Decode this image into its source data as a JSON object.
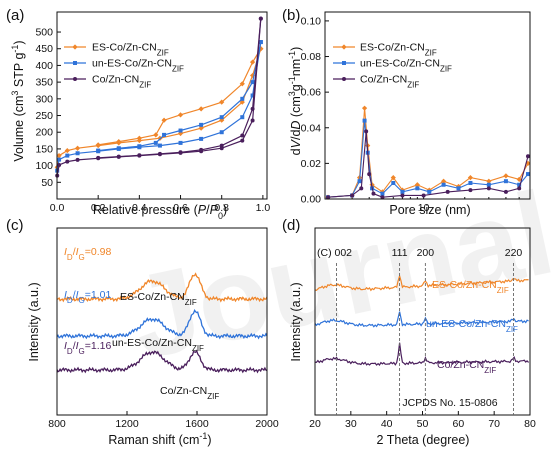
{
  "figure": {
    "watermark": "Journal Pre-proofs",
    "colors": {
      "es": "#f0862a",
      "un": "#2f73d9",
      "co": "#4a1f5c",
      "ref": "#666666"
    }
  },
  "chart_data": [
    {
      "panel": "(a)",
      "type": "line",
      "xlabel": "Relative pressure (P/P0)",
      "ylabel": "Volume (cm3 STP g-1)",
      "xlim": [
        0,
        1.02
      ],
      "ylim": [
        0,
        560
      ],
      "xticks": [
        "0.0",
        "0.2",
        "0.4",
        "0.6",
        "0.8",
        "1.0"
      ],
      "yticks": [
        "50",
        "100",
        "150",
        "200",
        "250",
        "300",
        "350",
        "400",
        "450",
        "500"
      ],
      "legend": "top-left",
      "series": [
        {
          "name": "ES-Co/Zn-CNZIF",
          "color": "#f0862a",
          "adsorption": [
            [
              0.001,
              95
            ],
            [
              0.01,
              130
            ],
            [
              0.05,
              145
            ],
            [
              0.1,
              152
            ],
            [
              0.2,
              160
            ],
            [
              0.3,
              168
            ],
            [
              0.4,
              175
            ],
            [
              0.5,
              182
            ],
            [
              0.6,
              196
            ],
            [
              0.7,
              212
            ],
            [
              0.8,
              236
            ],
            [
              0.9,
              290
            ],
            [
              0.95,
              370
            ],
            [
              0.99,
              450
            ]
          ],
          "desorption": [
            [
              0.99,
              450
            ],
            [
              0.95,
              410
            ],
            [
              0.9,
              345
            ],
            [
              0.8,
              290
            ],
            [
              0.7,
              270
            ],
            [
              0.6,
              252
            ],
            [
              0.52,
              236
            ],
            [
              0.48,
              192
            ],
            [
              0.4,
              182
            ],
            [
              0.3,
              172
            ],
            [
              0.2,
              162
            ]
          ]
        },
        {
          "name": "un-ES-Co/Zn-CNZIF",
          "color": "#2f73d9",
          "adsorption": [
            [
              0.001,
              85
            ],
            [
              0.01,
              118
            ],
            [
              0.05,
              130
            ],
            [
              0.1,
              137
            ],
            [
              0.2,
              143
            ],
            [
              0.3,
              150
            ],
            [
              0.4,
              155
            ],
            [
              0.5,
              160
            ],
            [
              0.6,
              168
            ],
            [
              0.7,
              180
            ],
            [
              0.8,
              200
            ],
            [
              0.9,
              245
            ],
            [
              0.95,
              310
            ],
            [
              0.99,
              470
            ]
          ],
          "desorption": [
            [
              0.99,
              470
            ],
            [
              0.95,
              350
            ],
            [
              0.9,
              300
            ],
            [
              0.8,
              245
            ],
            [
              0.7,
              222
            ],
            [
              0.6,
              205
            ],
            [
              0.52,
              192
            ],
            [
              0.48,
              168
            ],
            [
              0.4,
              158
            ],
            [
              0.3,
              152
            ],
            [
              0.2,
              145
            ]
          ]
        },
        {
          "name": "Co/Zn-CNZIF",
          "color": "#4a1f5c",
          "adsorption": [
            [
              0.001,
              70
            ],
            [
              0.01,
              102
            ],
            [
              0.05,
              112
            ],
            [
              0.1,
              117
            ],
            [
              0.2,
              122
            ],
            [
              0.3,
              126
            ],
            [
              0.4,
              130
            ],
            [
              0.5,
              134
            ],
            [
              0.6,
              138
            ],
            [
              0.7,
              143
            ],
            [
              0.8,
              152
            ],
            [
              0.9,
              175
            ],
            [
              0.95,
              235
            ],
            [
              0.99,
              540
            ]
          ],
          "desorption": [
            [
              0.99,
              540
            ],
            [
              0.95,
              270
            ],
            [
              0.9,
              190
            ],
            [
              0.8,
              160
            ],
            [
              0.7,
              147
            ],
            [
              0.6,
              140
            ],
            [
              0.5,
              135
            ],
            [
              0.4,
              131
            ],
            [
              0.3,
              127
            ],
            [
              0.2,
              123
            ]
          ]
        }
      ]
    },
    {
      "panel": "(b)",
      "type": "line",
      "xlabel": "Pore size (nm)",
      "ylabel": "dV/dD (cm3g-1nm-1)",
      "xscale": "log",
      "xlim": [
        1.9,
        60
      ],
      "ylim": [
        0,
        0.105
      ],
      "xticks": [
        "10"
      ],
      "yticks": [
        "0.00",
        "0.02",
        "0.04",
        "0.06",
        "0.08",
        "0.10"
      ],
      "legend": "top-right",
      "series": [
        {
          "name": "ES-Co/Zn-CNZIF",
          "color": "#f0862a",
          "points": [
            [
              2.0,
              0.001
            ],
            [
              3.0,
              0.002
            ],
            [
              3.4,
              0.012
            ],
            [
              3.7,
              0.051
            ],
            [
              3.9,
              0.03
            ],
            [
              4.2,
              0.008
            ],
            [
              5.0,
              0.004
            ],
            [
              6.0,
              0.012
            ],
            [
              7.0,
              0.005
            ],
            [
              9.0,
              0.008
            ],
            [
              11,
              0.005
            ],
            [
              14,
              0.01
            ],
            [
              18,
              0.007
            ],
            [
              22,
              0.012
            ],
            [
              30,
              0.01
            ],
            [
              40,
              0.013
            ],
            [
              50,
              0.011
            ],
            [
              58,
              0.02
            ]
          ]
        },
        {
          "name": "un-ES-Co/Zn-CNZIF",
          "color": "#2f73d9",
          "points": [
            [
              2.0,
              0.001
            ],
            [
              3.0,
              0.002
            ],
            [
              3.4,
              0.01
            ],
            [
              3.7,
              0.044
            ],
            [
              3.9,
              0.026
            ],
            [
              4.2,
              0.006
            ],
            [
              5.0,
              0.003
            ],
            [
              6.0,
              0.009
            ],
            [
              7.0,
              0.004
            ],
            [
              9.0,
              0.006
            ],
            [
              11,
              0.004
            ],
            [
              14,
              0.008
            ],
            [
              18,
              0.006
            ],
            [
              22,
              0.009
            ],
            [
              30,
              0.008
            ],
            [
              40,
              0.01
            ],
            [
              50,
              0.008
            ],
            [
              58,
              0.014
            ]
          ]
        },
        {
          "name": "Co/Zn-CNZIF",
          "color": "#4a1f5c",
          "points": [
            [
              2.0,
              0.001
            ],
            [
              3.0,
              0.002
            ],
            [
              3.5,
              0.006
            ],
            [
              3.8,
              0.038
            ],
            [
              4.0,
              0.014
            ],
            [
              4.3,
              0.003
            ],
            [
              5.0,
              0.001
            ],
            [
              7.0,
              0.002
            ],
            [
              10,
              0.002
            ],
            [
              15,
              0.004
            ],
            [
              22,
              0.005
            ],
            [
              30,
              0.006
            ],
            [
              40,
              0.004
            ],
            [
              50,
              0.006
            ],
            [
              58,
              0.024
            ]
          ]
        }
      ]
    },
    {
      "panel": "(c)",
      "type": "line",
      "xlabel": "Raman shift (cm-1)",
      "ylabel": "Intensity (a.u.)",
      "xlim": [
        800,
        2000
      ],
      "xticks": [
        "800",
        "1200",
        "1600",
        "2000"
      ],
      "series": [
        {
          "name": "ES-Co/Zn-CNZIF",
          "ratio": "ID/IG=0.98",
          "color": "#f0862a"
        },
        {
          "name": "un-ES-Co/Zn-CNZIF",
          "ratio": "ID/IG=1.01",
          "color": "#2f73d9"
        },
        {
          "name": "Co/Zn-CNZIF",
          "ratio": "ID/IG=1.16",
          "color": "#4a1f5c"
        }
      ]
    },
    {
      "panel": "(d)",
      "type": "line",
      "xlabel": "2 Theta (degree)",
      "ylabel": "Intensity (a.u.)",
      "xlim": [
        20,
        80
      ],
      "xticks": [
        "20",
        "30",
        "40",
        "50",
        "60",
        "70",
        "80"
      ],
      "reflections": [
        {
          "label": "(C) 002",
          "x": 26.0
        },
        {
          "label": "111",
          "x": 43.6
        },
        {
          "label": "200",
          "x": 50.8
        },
        {
          "label": "220",
          "x": 75.4
        }
      ],
      "reference": "JCPDS No. 15-0806",
      "series": [
        {
          "name": "ES-Co/Zn-CNZIF",
          "color": "#f0862a"
        },
        {
          "name": "un-ES-Co/Zn-CNZIF",
          "color": "#2f73d9"
        },
        {
          "name": "Co/Zn-CNZIF",
          "color": "#4a1f5c"
        }
      ]
    }
  ]
}
